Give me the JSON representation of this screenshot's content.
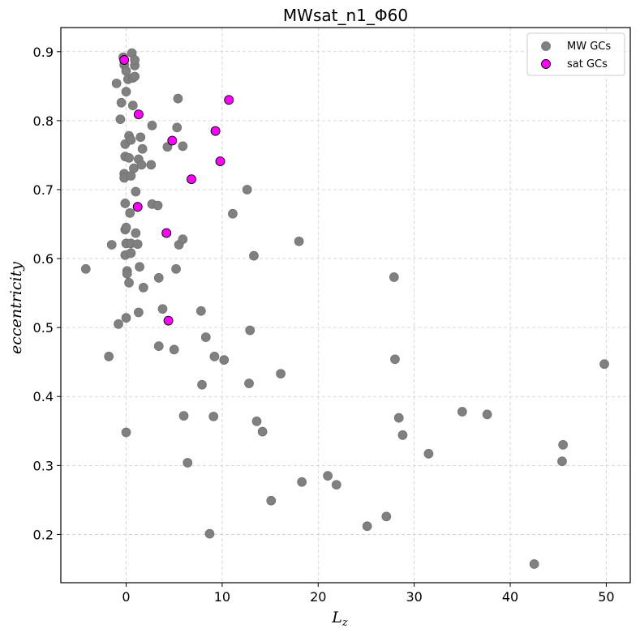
{
  "chart_data": {
    "type": "scatter",
    "title": "MWsat_n1_Φ60",
    "xlabel": "L",
    "xlabel_sub": "z",
    "ylabel": "eccentricity",
    "xlim": [
      -6.8,
      52.5
    ],
    "ylim": [
      0.13,
      0.935
    ],
    "xticks": [
      0,
      10,
      20,
      30,
      40,
      50
    ],
    "yticks": [
      0.2,
      0.3,
      0.4,
      0.5,
      0.6,
      0.7,
      0.8,
      0.9
    ],
    "grid": true,
    "legend_position": "top-right",
    "series": [
      {
        "name": "MW GCs",
        "color": "#808080",
        "points": [
          [
            -4.2,
            0.585
          ],
          [
            -1.8,
            0.458
          ],
          [
            -1.5,
            0.62
          ],
          [
            -1.0,
            0.854
          ],
          [
            -0.8,
            0.505
          ],
          [
            -0.6,
            0.802
          ],
          [
            -0.5,
            0.826
          ],
          [
            -0.3,
            0.892
          ],
          [
            -0.2,
            0.881
          ],
          [
            -0.2,
            0.723
          ],
          [
            -0.2,
            0.717
          ],
          [
            -0.1,
            0.748
          ],
          [
            -0.1,
            0.68
          ],
          [
            -0.1,
            0.642
          ],
          [
            -0.1,
            0.605
          ],
          [
            -0.1,
            0.766
          ],
          [
            0.0,
            0.872
          ],
          [
            0.0,
            0.842
          ],
          [
            0.0,
            0.645
          ],
          [
            0.0,
            0.622
          ],
          [
            0.0,
            0.514
          ],
          [
            0.0,
            0.348
          ],
          [
            0.1,
            0.582
          ],
          [
            0.1,
            0.578
          ],
          [
            0.2,
            0.86
          ],
          [
            0.3,
            0.778
          ],
          [
            0.3,
            0.746
          ],
          [
            0.3,
            0.565
          ],
          [
            0.4,
            0.666
          ],
          [
            0.5,
            0.622
          ],
          [
            0.5,
            0.608
          ],
          [
            0.5,
            0.72
          ],
          [
            0.5,
            0.772
          ],
          [
            0.6,
            0.898
          ],
          [
            0.7,
            0.822
          ],
          [
            0.7,
            0.862
          ],
          [
            0.8,
            0.731
          ],
          [
            0.9,
            0.88
          ],
          [
            0.9,
            0.888
          ],
          [
            0.9,
            0.864
          ],
          [
            1.0,
            0.697
          ],
          [
            1.0,
            0.637
          ],
          [
            1.2,
            0.621
          ],
          [
            1.3,
            0.744
          ],
          [
            1.3,
            0.522
          ],
          [
            1.4,
            0.588
          ],
          [
            1.5,
            0.776
          ],
          [
            1.6,
            0.736
          ],
          [
            1.7,
            0.759
          ],
          [
            1.8,
            0.558
          ],
          [
            2.6,
            0.736
          ],
          [
            2.7,
            0.793
          ],
          [
            2.7,
            0.679
          ],
          [
            3.3,
            0.677
          ],
          [
            3.4,
            0.572
          ],
          [
            3.4,
            0.473
          ],
          [
            3.8,
            0.527
          ],
          [
            4.3,
            0.762
          ],
          [
            5.0,
            0.468
          ],
          [
            5.2,
            0.585
          ],
          [
            5.3,
            0.79
          ],
          [
            5.4,
            0.832
          ],
          [
            5.5,
            0.62
          ],
          [
            5.9,
            0.628
          ],
          [
            5.9,
            0.763
          ],
          [
            6.0,
            0.372
          ],
          [
            6.4,
            0.304
          ],
          [
            7.8,
            0.524
          ],
          [
            7.9,
            0.417
          ],
          [
            8.3,
            0.486
          ],
          [
            8.7,
            0.201
          ],
          [
            9.1,
            0.371
          ],
          [
            9.2,
            0.458
          ],
          [
            10.2,
            0.453
          ],
          [
            11.1,
            0.665
          ],
          [
            12.6,
            0.7
          ],
          [
            12.8,
            0.419
          ],
          [
            12.9,
            0.496
          ],
          [
            13.3,
            0.604
          ],
          [
            13.6,
            0.364
          ],
          [
            14.2,
            0.349
          ],
          [
            15.1,
            0.249
          ],
          [
            16.1,
            0.433
          ],
          [
            18.0,
            0.625
          ],
          [
            18.3,
            0.276
          ],
          [
            21.0,
            0.285
          ],
          [
            21.9,
            0.272
          ],
          [
            25.1,
            0.212
          ],
          [
            27.1,
            0.226
          ],
          [
            27.9,
            0.573
          ],
          [
            28.0,
            0.454
          ],
          [
            28.4,
            0.369
          ],
          [
            28.8,
            0.344
          ],
          [
            31.5,
            0.317
          ],
          [
            35.0,
            0.378
          ],
          [
            37.6,
            0.374
          ],
          [
            42.5,
            0.157
          ],
          [
            45.4,
            0.306
          ],
          [
            45.5,
            0.33
          ],
          [
            49.8,
            0.447
          ]
        ]
      },
      {
        "name": "sat GCs",
        "color": "#ff00ff",
        "points": [
          [
            -0.2,
            0.888
          ],
          [
            1.3,
            0.809
          ],
          [
            1.2,
            0.675
          ],
          [
            4.2,
            0.637
          ],
          [
            4.4,
            0.51
          ],
          [
            4.8,
            0.771
          ],
          [
            6.8,
            0.715
          ],
          [
            9.3,
            0.785
          ],
          [
            9.8,
            0.741
          ],
          [
            10.7,
            0.83
          ]
        ]
      }
    ]
  }
}
